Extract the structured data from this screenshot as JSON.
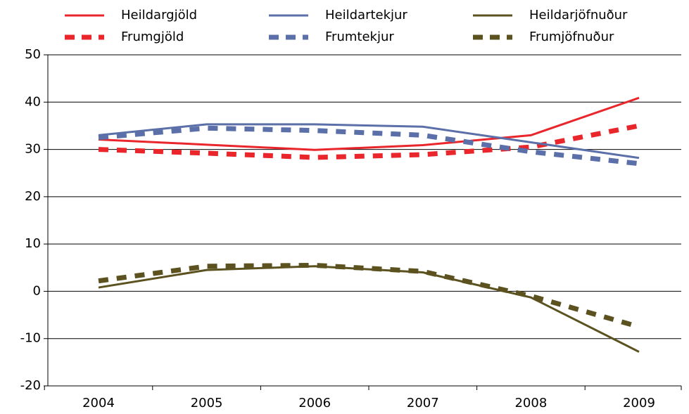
{
  "chart_data": {
    "type": "line",
    "categories": [
      "2004",
      "2005",
      "2006",
      "2007",
      "2008",
      "2009"
    ],
    "series": [
      {
        "name": "Heildargjöld",
        "color": "#e8262b",
        "dashed": false,
        "values": [
          32.1,
          31,
          29.9,
          30.9,
          33,
          40.9
        ]
      },
      {
        "name": "Frumgjöld",
        "color": "#e8262b",
        "dashed": true,
        "values": [
          30,
          29.2,
          28.3,
          28.9,
          30.5,
          35
        ]
      },
      {
        "name": "Heildartekjur",
        "color": "#5b6fa8",
        "dashed": false,
        "values": [
          33,
          35.3,
          35.3,
          34.8,
          31.5,
          28.2
        ]
      },
      {
        "name": "Frumtekjur",
        "color": "#5b6fa8",
        "dashed": true,
        "values": [
          32.5,
          34.5,
          34,
          33,
          29.5,
          27
        ]
      },
      {
        "name": "Heildarjöfnuður",
        "color": "#5b5220",
        "dashed": false,
        "values": [
          0.8,
          4.5,
          5.3,
          4,
          -1.3,
          -12.8
        ]
      },
      {
        "name": "Frumjöfnuður",
        "color": "#5b5220",
        "dashed": true,
        "values": [
          2.2,
          5.3,
          5.5,
          4.2,
          -1,
          -7.5
        ]
      }
    ],
    "ylim": [
      -20,
      50
    ],
    "yticks": [
      -20,
      -10,
      0,
      10,
      20,
      30,
      40,
      50
    ],
    "grid": true
  }
}
